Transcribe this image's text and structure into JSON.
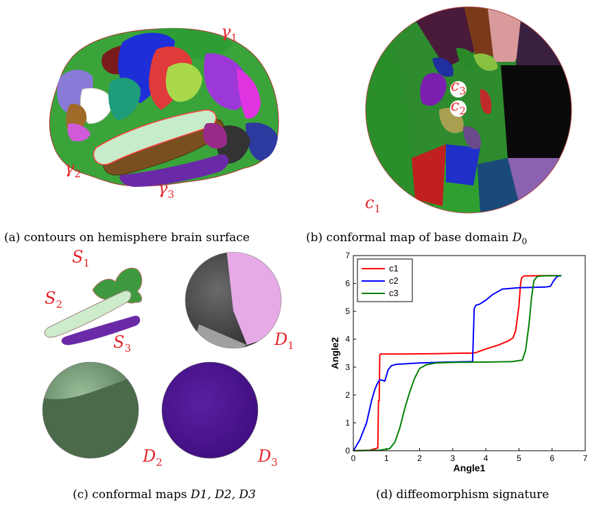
{
  "figure": {
    "panel_a": {
      "caption": "(a) contours on hemisphere brain surface",
      "labels": [
        {
          "base": "γ",
          "sub": "1"
        },
        {
          "base": "γ",
          "sub": "2"
        },
        {
          "base": "γ",
          "sub": "3"
        }
      ]
    },
    "panel_b": {
      "caption_prefix": "(b) conformal map of base domain ",
      "caption_math": "D",
      "caption_sub": "0",
      "labels": [
        {
          "base": "c",
          "sub": "1"
        },
        {
          "base": "c",
          "sub": "2"
        },
        {
          "base": "c",
          "sub": "3"
        }
      ]
    },
    "panel_c": {
      "caption_prefix": "(c) conformal maps ",
      "caption_math": "D1, D2, D3",
      "labels": [
        {
          "base": "S",
          "sub": "1"
        },
        {
          "base": "S",
          "sub": "2"
        },
        {
          "base": "S",
          "sub": "3"
        },
        {
          "base": "D",
          "sub": "1"
        },
        {
          "base": "D",
          "sub": "2"
        },
        {
          "base": "D",
          "sub": "3"
        }
      ]
    },
    "panel_d": {
      "caption": "(d) diffeomorphism signature"
    }
  },
  "colors": {
    "label_red": "#e8262b",
    "c1": "#ff0000",
    "c2": "#0000ff",
    "c3": "#008000"
  },
  "chart_data": {
    "type": "line",
    "title": "",
    "xlabel": "Angle1",
    "ylabel": "Angle2",
    "xlim": [
      0,
      7
    ],
    "ylim": [
      0,
      7
    ],
    "xticks": [
      0,
      1,
      2,
      3,
      4,
      5,
      6,
      7
    ],
    "yticks": [
      0,
      1,
      2,
      3,
      4,
      5,
      6,
      7
    ],
    "grid": false,
    "legend_position": "top-left",
    "series": [
      {
        "name": "c1",
        "color": "#ff0000",
        "x": [
          0,
          0.5,
          0.74,
          0.76,
          0.78,
          0.8,
          0.82,
          1.5,
          2.5,
          3.3,
          3.55,
          3.7,
          4.0,
          4.4,
          4.7,
          4.82,
          4.9,
          5.0,
          5.05,
          5.08,
          5.15,
          5.6,
          6.28
        ],
        "y": [
          0,
          0.02,
          0.1,
          1.8,
          1.8,
          3.45,
          3.47,
          3.47,
          3.48,
          3.5,
          3.5,
          3.52,
          3.65,
          3.8,
          3.95,
          4.05,
          4.3,
          5.2,
          6.0,
          6.2,
          6.27,
          6.28,
          6.28
        ]
      },
      {
        "name": "c2",
        "color": "#0000ff",
        "x": [
          0,
          0.2,
          0.4,
          0.55,
          0.65,
          0.72,
          0.8,
          0.95,
          1.05,
          1.15,
          1.3,
          2.0,
          2.8,
          3.6,
          3.65,
          3.7,
          3.8,
          4.0,
          4.2,
          4.5,
          5.0,
          5.8,
          5.95,
          6.05,
          6.15,
          6.28
        ],
        "y": [
          0,
          0.4,
          1.0,
          1.8,
          2.2,
          2.4,
          2.55,
          2.5,
          2.9,
          3.05,
          3.1,
          3.15,
          3.18,
          3.2,
          5.1,
          5.22,
          5.25,
          5.4,
          5.6,
          5.8,
          5.85,
          5.87,
          5.9,
          6.1,
          6.25,
          6.28
        ]
      },
      {
        "name": "c3",
        "color": "#008000",
        "x": [
          0,
          0.8,
          1.1,
          1.25,
          1.4,
          1.55,
          1.7,
          1.85,
          2.0,
          2.2,
          2.5,
          3.0,
          4.0,
          4.8,
          5.1,
          5.2,
          5.3,
          5.38,
          5.45,
          5.55,
          5.7,
          5.9,
          6.28
        ],
        "y": [
          0,
          0.02,
          0.08,
          0.3,
          0.8,
          1.5,
          2.1,
          2.6,
          2.95,
          3.08,
          3.15,
          3.17,
          3.18,
          3.2,
          3.25,
          3.6,
          4.5,
          5.5,
          6.1,
          6.25,
          6.27,
          6.28,
          6.28
        ]
      }
    ]
  }
}
